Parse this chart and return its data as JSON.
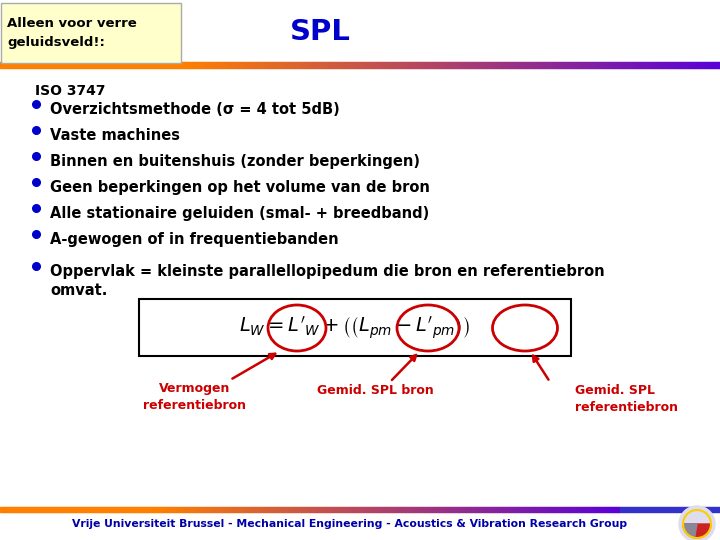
{
  "bg_color": "#ffffff",
  "yellow_box_color": "#ffffcc",
  "yellow_box_text": "Alleen voor verre\ngeluidsveld!:",
  "yellow_box_text_color": "#000000",
  "title_partial": "SPL",
  "title_color": "#0000cc",
  "title_fontsize": 20,
  "section_label": "ISO 3747",
  "bullet_color": "#0000cc",
  "bullets": [
    "Overzichtsmethode (σ = 4 tot 5dB)",
    "Vaste machines",
    "Binnen en buitenshuis (zonder beperkingen)",
    "Geen beperkingen op het volume van de bron",
    "Alle stationaire geluiden (smal- + breedband)",
    "A-gewogen of in frequentiebanden",
    "Oppervlak = kleinste parallellopipedum die bron en referentiebron\nomvat."
  ],
  "bullet_fontsize": 10.5,
  "annotation_color": "#cc0000",
  "annotation_texts": [
    "Vermogen\nreferentiebron",
    "Gemid. SPL bron",
    "Gemid. SPL\nreferentiebron"
  ],
  "footer_text": "Vrije Universiteit Brussel - Mechanical Engineering - Acoustics & Vibration Research Group",
  "footer_color": "#0000aa"
}
